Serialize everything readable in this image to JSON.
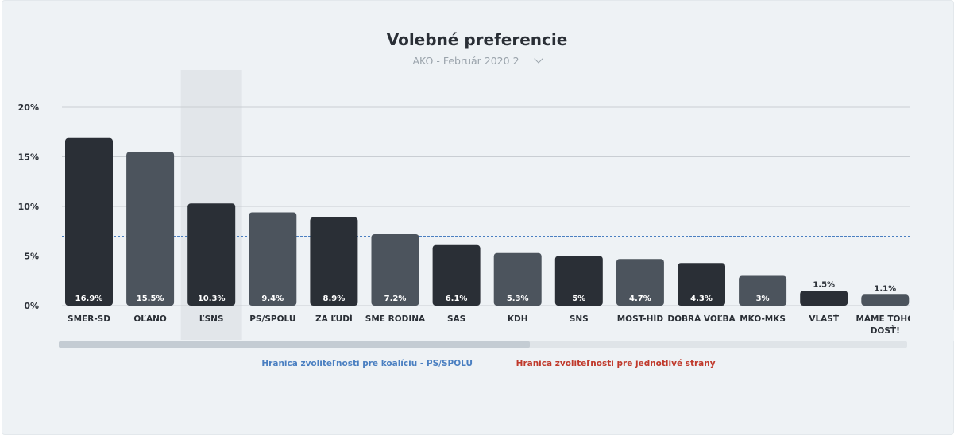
{
  "chart_data": {
    "type": "bar",
    "title": "Volebné preferencie",
    "subtitle": "AKO - Február 2020 2",
    "categories": [
      "SMER-SD",
      "OĽANO",
      "ĽSNS",
      "PS/SPOLU",
      "ZA ĽUDÍ",
      "SME RODINA",
      "SAS",
      "KDH",
      "SNS",
      "MOST-HÍD",
      "DOBRÁ VOĽBA",
      "MKO-MKS",
      "VLASŤ",
      "MÁME TOHO DOSŤ!"
    ],
    "values": [
      16.9,
      15.5,
      10.3,
      9.4,
      8.9,
      7.2,
      6.1,
      5.3,
      5,
      4.7,
      4.3,
      3,
      1.5,
      1.1
    ],
    "value_labels": [
      "16.9%",
      "15.5%",
      "10.3%",
      "9.4%",
      "8.9%",
      "7.2%",
      "6.1%",
      "5.3%",
      "5%",
      "4.7%",
      "4.3%",
      "3%",
      "1.5%",
      "1.1%"
    ],
    "yticks": [
      "0%",
      "5%",
      "10%",
      "15%",
      "20%"
    ],
    "ylim": [
      0,
      20
    ],
    "grid": true,
    "highlighted_category": "ĽSNS",
    "bar_colors": [
      "#2a2f36",
      "#4c545d",
      "#2a2f36",
      "#4c545d",
      "#2a2f36",
      "#4c545d",
      "#2a2f36",
      "#4c545d",
      "#2a2f36",
      "#4c545d",
      "#2a2f36",
      "#4c545d",
      "#2a2f36",
      "#4c545d"
    ],
    "thresholds": [
      {
        "name": "Hranica zvoliteľnosti pre koalíciu - PS/SPOLU",
        "value": 7,
        "color": "#4a7fc1"
      },
      {
        "name": "Hranica zvoliteľnosti pre jednotlivé strany",
        "value": 5,
        "color": "#c0392b"
      }
    ],
    "legend_position": "bottom"
  },
  "colors": {
    "background": "#eef2f5",
    "gridline": "#c9ced3",
    "highlight": "#e2e6ea"
  }
}
